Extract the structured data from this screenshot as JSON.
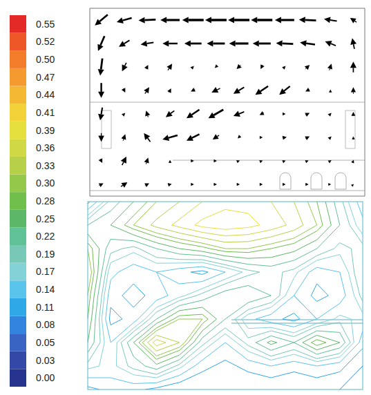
{
  "chart_data": [
    {
      "type": "vector",
      "xlim": [
        0,
        12
      ],
      "ylim": [
        0,
        8
      ],
      "tick_labels": false,
      "grid": false,
      "color": "#000000",
      "x": [
        0.5,
        1.5,
        2.5,
        3.5,
        4.5,
        5.5,
        6.5,
        7.5,
        8.5,
        9.5,
        10.5,
        11.5
      ],
      "y": [
        7.5,
        6.5,
        5.5,
        4.5,
        3.5,
        2.5,
        1.5,
        0.5
      ],
      "u": [
        [
          -0.3,
          -0.35,
          -0.4,
          -0.45,
          -0.5,
          -0.5,
          -0.5,
          -0.5,
          -0.45,
          -0.4,
          -0.3,
          -0.15
        ],
        [
          -0.15,
          -0.25,
          -0.3,
          -0.35,
          -0.4,
          -0.42,
          -0.45,
          -0.42,
          -0.4,
          -0.35,
          -0.25,
          -0.05
        ],
        [
          -0.05,
          -0.1,
          0.05,
          0.1,
          0.05,
          -0.05,
          -0.1,
          -0.05,
          0.05,
          0.1,
          0.05,
          0.0
        ],
        [
          0.0,
          0.05,
          0.1,
          0.05,
          -0.1,
          -0.2,
          -0.25,
          -0.3,
          -0.25,
          -0.1,
          0.0,
          0.0
        ],
        [
          -0.05,
          0.05,
          -0.05,
          -0.2,
          -0.3,
          -0.35,
          -0.25,
          -0.1,
          0.05,
          0.1,
          0.05,
          0.0
        ],
        [
          0.0,
          0.05,
          -0.15,
          -0.35,
          -0.3,
          -0.15,
          -0.05,
          0.05,
          0.1,
          0.1,
          0.05,
          0.0
        ],
        [
          0.05,
          0.1,
          0.05,
          0.0,
          0.05,
          0.05,
          0.05,
          0.05,
          0.05,
          0.05,
          0.05,
          0.02
        ],
        [
          0.1,
          0.15,
          0.1,
          0.08,
          0.05,
          0.05,
          0.05,
          0.05,
          0.05,
          0.05,
          0.03,
          0.02
        ]
      ],
      "v": [
        [
          -0.25,
          -0.1,
          -0.02,
          0.0,
          0.0,
          0.0,
          0.0,
          0.0,
          0.0,
          0.02,
          0.05,
          0.1
        ],
        [
          -0.35,
          -0.15,
          -0.05,
          0.0,
          0.0,
          0.0,
          0.0,
          0.0,
          0.02,
          0.05,
          0.1,
          0.25
        ],
        [
          -0.4,
          -0.2,
          0.1,
          0.15,
          0.05,
          -0.05,
          -0.1,
          -0.1,
          0.05,
          0.1,
          0.15,
          0.25
        ],
        [
          -0.35,
          -0.1,
          0.15,
          0.1,
          -0.05,
          -0.1,
          -0.15,
          -0.2,
          -0.2,
          -0.05,
          0.05,
          0.15
        ],
        [
          -0.3,
          0.05,
          0.15,
          -0.15,
          -0.2,
          -0.2,
          -0.1,
          -0.05,
          0.0,
          0.05,
          0.05,
          0.1
        ],
        [
          -0.2,
          0.15,
          0.2,
          -0.1,
          -0.15,
          -0.1,
          -0.05,
          0.0,
          0.02,
          0.05,
          0.05,
          0.05
        ],
        [
          -0.1,
          0.2,
          0.15,
          0.05,
          0.0,
          0.0,
          0.02,
          0.02,
          0.02,
          0.02,
          0.03,
          0.05
        ],
        [
          0.05,
          0.1,
          0.05,
          0.02,
          0.0,
          0.0,
          0.0,
          0.0,
          0.0,
          0.0,
          0.0,
          0.02
        ]
      ]
    },
    {
      "type": "contour",
      "xlim": [
        0,
        12
      ],
      "ylim": [
        0,
        8
      ],
      "tick_labels": false,
      "grid": false,
      "x": [
        0,
        1,
        2,
        3,
        4,
        5,
        6,
        7,
        8,
        9,
        10,
        11,
        12
      ],
      "y": [
        8,
        7,
        6,
        5,
        4,
        3,
        2,
        1,
        0
      ],
      "values": [
        [
          0.1,
          0.2,
          0.25,
          0.3,
          0.33,
          0.36,
          0.38,
          0.38,
          0.36,
          0.33,
          0.28,
          0.2,
          0.12
        ],
        [
          0.22,
          0.25,
          0.3,
          0.34,
          0.37,
          0.4,
          0.41,
          0.4,
          0.38,
          0.35,
          0.3,
          0.22,
          0.15
        ],
        [
          0.3,
          0.2,
          0.18,
          0.22,
          0.25,
          0.27,
          0.3,
          0.3,
          0.28,
          0.26,
          0.22,
          0.18,
          0.2
        ],
        [
          0.33,
          0.15,
          0.12,
          0.14,
          0.12,
          0.1,
          0.14,
          0.18,
          0.2,
          0.18,
          0.12,
          0.14,
          0.22
        ],
        [
          0.3,
          0.12,
          0.1,
          0.12,
          0.16,
          0.2,
          0.24,
          0.25,
          0.22,
          0.14,
          0.1,
          0.12,
          0.2
        ],
        [
          0.28,
          0.1,
          0.12,
          0.22,
          0.3,
          0.3,
          0.22,
          0.15,
          0.12,
          0.1,
          0.14,
          0.18,
          0.16
        ],
        [
          0.25,
          0.14,
          0.25,
          0.38,
          0.33,
          0.2,
          0.14,
          0.2,
          0.26,
          0.22,
          0.3,
          0.25,
          0.12
        ],
        [
          0.18,
          0.16,
          0.2,
          0.24,
          0.18,
          0.12,
          0.1,
          0.12,
          0.14,
          0.12,
          0.14,
          0.12,
          0.08
        ],
        [
          0.1,
          0.12,
          0.12,
          0.1,
          0.08,
          0.08,
          0.08,
          0.08,
          0.08,
          0.08,
          0.08,
          0.08,
          0.05
        ]
      ],
      "colorbar": {
        "ticks": [
          {
            "value": 0,
            "label": "0.00"
          },
          0.03,
          0.05,
          0.08,
          0.11,
          0.14,
          0.17,
          0.19,
          0.22,
          0.25,
          0.28,
          {
            "value": 0.3,
            "label": "0.30"
          },
          0.33,
          0.36,
          0.39,
          0.41,
          0.44,
          0.47,
          {
            "value": 0.5,
            "label": "0.50"
          },
          0.52,
          0.55
        ],
        "colors": [
          "#26348f",
          "#3448a8",
          "#3a64c4",
          "#3284dc",
          "#2fa8e8",
          "#5ac4ec",
          "#82d2d8",
          "#78c8b8",
          "#60c096",
          "#5cb868",
          "#70be4c",
          "#94c84a",
          "#b6d04a",
          "#d0d846",
          "#e6e03e",
          "#f2d238",
          "#f5b832",
          "#f59a2e",
          "#f27c2a",
          "#ee5828",
          "#e42a26"
        ]
      }
    }
  ]
}
